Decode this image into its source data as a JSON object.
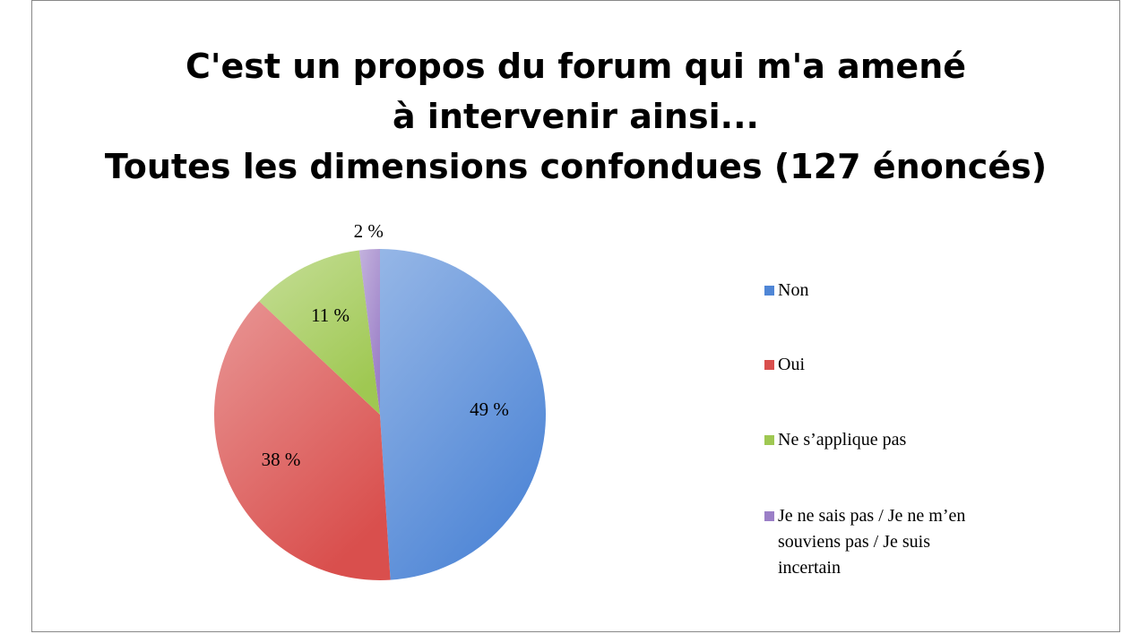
{
  "chart_data": {
    "type": "pie",
    "title": "C'est un propos du forum qui m'a amené à intervenir ainsi...",
    "subtitle": "Toutes les dimensions confondues (127 énoncés)",
    "categories": [
      "Non",
      "Oui",
      "Ne s’applique pas",
      "Je ne sais pas / Je ne m’en souviens pas / Je suis incertain"
    ],
    "values": [
      49,
      38,
      11,
      2
    ],
    "value_labels": [
      "49 %",
      "38 %",
      "11 %",
      "2 %"
    ],
    "colors": [
      "#4f86d6",
      "#d94f4d",
      "#9fc852",
      "#9b7fc7"
    ],
    "legend": "right"
  }
}
